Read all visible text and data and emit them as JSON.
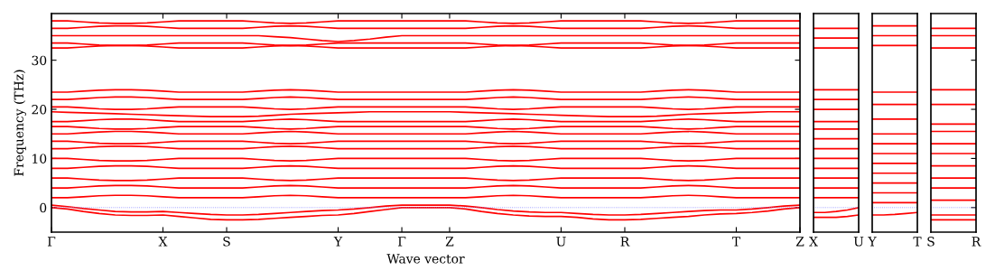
{
  "chart_data": [
    {
      "type": "line",
      "ylabel": "Frequency (THz)",
      "xlabel": "Wave vector",
      "ylim": [
        -5,
        39.5
      ],
      "yticks": [
        0,
        10,
        20,
        30
      ],
      "categories": [
        "Γ",
        null,
        null,
        null,
        null,
        null,
        null,
        "X",
        null,
        null,
        null,
        "S",
        null,
        null,
        null,
        null,
        null,
        null,
        "Y",
        null,
        null,
        null,
        "Γ",
        null,
        null,
        "Z",
        null,
        null,
        null,
        null,
        null,
        null,
        "U",
        null,
        null,
        null,
        "R",
        null,
        null,
        null,
        null,
        null,
        null,
        "T",
        null,
        null,
        null,
        "Z"
      ],
      "ref_lines": [
        {
          "axis": "y",
          "value": 0,
          "color": "#8080ff",
          "line_style": "dotted"
        }
      ],
      "grid": false,
      "legend": false,
      "series": [
        {
          "color": "#ff0000",
          "values": [
            0,
            -0.3,
            -0.8,
            -1.2,
            -1.5,
            -1.6,
            -1.6,
            -1.5,
            -1.8,
            -2.1,
            -2.4,
            -2.5,
            -2.5,
            -2.4,
            -2.2,
            -2,
            -1.8,
            -1.6,
            -1.5,
            -1.2,
            -0.8,
            -0.4,
            0,
            0,
            0,
            0,
            -0.3,
            -0.8,
            -1.2,
            -1.5,
            -1.7,
            -1.8,
            -1.8,
            -2,
            -2.3,
            -2.5,
            -2.5,
            -2.4,
            -2.2,
            -2,
            -1.8,
            -1.5,
            -1.3,
            -1.2,
            -1,
            -0.7,
            -0.3,
            0
          ]
        },
        {
          "color": "#ff0000",
          "values": [
            0.5,
            0.2,
            -0.2,
            -0.5,
            -0.8,
            -0.9,
            -0.9,
            -0.8,
            -1,
            -1.2,
            -1.4,
            -1.5,
            -1.5,
            -1.4,
            -1.2,
            -1,
            -0.8,
            -0.6,
            -0.5,
            -0.3,
            0,
            0.3,
            0.5,
            0.5,
            0.5,
            0.5,
            0.3,
            0,
            -0.4,
            -0.7,
            -0.9,
            -1,
            -1,
            -1.2,
            -1.4,
            -1.5,
            -1.5,
            -1.4,
            -1.2,
            -1,
            -0.8,
            -0.6,
            -0.5,
            -0.5,
            -0.3,
            0,
            0.3,
            0.5
          ]
        },
        {
          "color": "#ff0000",
          "values": [
            2,
            2,
            2.2,
            2.4,
            2.5,
            2.5,
            2.4,
            2.2,
            2,
            2,
            2,
            2,
            2,
            2.2,
            2.4,
            2.5,
            2.4,
            2.2,
            2,
            2,
            2,
            2,
            2,
            2,
            2,
            2,
            2,
            2.2,
            2.4,
            2.5,
            2.4,
            2.2,
            2,
            2,
            2,
            2,
            2,
            2,
            2.2,
            2.4,
            2.5,
            2.4,
            2.2,
            2,
            2,
            2,
            2,
            2
          ]
        },
        {
          "color": "#ff0000",
          "values": [
            4,
            4,
            4.2,
            4.4,
            4.5,
            4.5,
            4.4,
            4.2,
            4,
            4,
            4,
            4,
            4,
            4.2,
            4.4,
            4.5,
            4.4,
            4.2,
            4,
            4,
            4,
            4,
            4,
            4,
            4,
            4,
            4,
            4.2,
            4.4,
            4.5,
            4.4,
            4.2,
            4,
            4,
            4,
            4,
            4,
            4,
            4.2,
            4.4,
            4.5,
            4.4,
            4.2,
            4,
            4,
            4,
            4,
            4
          ]
        },
        {
          "color": "#ff0000",
          "values": [
            6,
            6,
            5.8,
            5.6,
            5.5,
            5.5,
            5.6,
            5.8,
            6,
            6,
            6,
            6,
            6,
            5.8,
            5.6,
            5.5,
            5.6,
            5.8,
            6,
            6,
            6,
            6,
            6,
            6,
            6,
            6,
            6,
            5.8,
            5.6,
            5.5,
            5.6,
            5.8,
            6,
            6,
            6,
            6,
            6,
            6,
            5.8,
            5.6,
            5.5,
            5.6,
            5.8,
            6,
            6,
            6,
            6,
            6
          ]
        },
        {
          "color": "#ff0000",
          "values": [
            8,
            8,
            8.2,
            8.4,
            8.5,
            8.5,
            8.4,
            8.2,
            8,
            8,
            8,
            8,
            8,
            8.2,
            8.4,
            8.5,
            8.4,
            8.2,
            8,
            8,
            8,
            8,
            8,
            8,
            8,
            8,
            8,
            8.2,
            8.4,
            8.5,
            8.4,
            8.2,
            8,
            8,
            8,
            8,
            8,
            8,
            8.2,
            8.4,
            8.5,
            8.4,
            8.2,
            8,
            8,
            8,
            8,
            8
          ]
        },
        {
          "color": "#ff0000",
          "values": [
            10,
            10,
            9.8,
            9.6,
            9.5,
            9.5,
            9.6,
            9.8,
            10,
            10,
            10,
            10,
            10,
            9.8,
            9.6,
            9.5,
            9.6,
            9.8,
            10,
            10,
            10,
            10,
            10,
            10,
            10,
            10,
            10,
            9.8,
            9.6,
            9.5,
            9.6,
            9.8,
            10,
            10,
            10,
            10,
            10,
            10,
            9.8,
            9.6,
            9.5,
            9.6,
            9.8,
            10,
            10,
            10,
            10,
            10
          ]
        },
        {
          "color": "#ff0000",
          "values": [
            12,
            12,
            12.2,
            12.4,
            12.5,
            12.5,
            12.4,
            12.2,
            12,
            12,
            12,
            12,
            12,
            12.2,
            12.4,
            12.5,
            12.4,
            12.2,
            12,
            12,
            12,
            12,
            12,
            12,
            12,
            12,
            12,
            12.2,
            12.4,
            12.5,
            12.4,
            12.2,
            12,
            12,
            12,
            12,
            12,
            12,
            12.2,
            12.4,
            12.5,
            12.4,
            12.2,
            12,
            12,
            12,
            12,
            12
          ]
        },
        {
          "color": "#ff0000",
          "values": [
            13.5,
            13.5,
            13.3,
            13.1,
            13,
            13,
            13.1,
            13.3,
            13.5,
            13.5,
            13.5,
            13.5,
            13.5,
            13.3,
            13.1,
            13,
            13.1,
            13.3,
            13.5,
            13.5,
            13.5,
            13.5,
            13.5,
            13.5,
            13.5,
            13.5,
            13.5,
            13.3,
            13.1,
            13,
            13.1,
            13.3,
            13.5,
            13.5,
            13.5,
            13.5,
            13.5,
            13.5,
            13.3,
            13.1,
            13,
            13.1,
            13.3,
            13.5,
            13.5,
            13.5,
            13.5,
            13.5
          ]
        },
        {
          "color": "#ff0000",
          "values": [
            15,
            15,
            15.2,
            15.4,
            15.5,
            15.5,
            15.4,
            15.2,
            15,
            15,
            15,
            15,
            15,
            15.2,
            15.4,
            15.5,
            15.4,
            15.2,
            15,
            15,
            15,
            15,
            15,
            15,
            15,
            15,
            15,
            15.2,
            15.4,
            15.5,
            15.4,
            15.2,
            15,
            15,
            15,
            15,
            15,
            15,
            15.2,
            15.4,
            15.5,
            15.4,
            15.2,
            15,
            15,
            15,
            15,
            15
          ]
        },
        {
          "color": "#ff0000",
          "values": [
            16.5,
            16.5,
            16.3,
            16.1,
            16,
            16,
            16.1,
            16.3,
            16.5,
            16.5,
            16.5,
            16.5,
            16.5,
            16.3,
            16.1,
            16,
            16.1,
            16.3,
            16.5,
            16.5,
            16.5,
            16.5,
            16.5,
            16.5,
            16.5,
            16.5,
            16.5,
            16.3,
            16.1,
            16,
            16.1,
            16.3,
            16.5,
            16.5,
            16.5,
            16.5,
            16.5,
            16.5,
            16.3,
            16.1,
            16,
            16.1,
            16.3,
            16.5,
            16.5,
            16.5,
            16.5,
            16.5
          ]
        },
        {
          "color": "#ff0000",
          "values": [
            17.5,
            17.5,
            17.7,
            17.9,
            18,
            18,
            17.9,
            17.7,
            17.5,
            17.5,
            17.5,
            17.5,
            17.5,
            17.7,
            17.9,
            18,
            17.9,
            17.7,
            17.5,
            17.5,
            17.5,
            17.5,
            17.5,
            17.5,
            17.5,
            17.5,
            17.5,
            17.7,
            17.9,
            18,
            17.9,
            17.7,
            17.5,
            17.5,
            17.5,
            17.5,
            17.5,
            17.5,
            17.7,
            17.9,
            18,
            17.9,
            17.7,
            17.5,
            17.5,
            17.5,
            17.5,
            17.5
          ]
        },
        {
          "color": "#ff0000",
          "values": [
            19.5,
            19.4,
            19.3,
            19.2,
            19.1,
            19,
            18.9,
            18.8,
            18.7,
            18.6,
            18.5,
            18.5,
            18.5,
            18.6,
            18.8,
            19,
            19.1,
            19.2,
            19.3,
            19.4,
            19.5,
            19.5,
            19.5,
            19.5,
            19.5,
            19.5,
            19.4,
            19.3,
            19.2,
            19.1,
            19,
            18.9,
            18.8,
            18.7,
            18.6,
            18.5,
            18.5,
            18.5,
            18.6,
            18.8,
            19,
            19.1,
            19.2,
            19.3,
            19.4,
            19.5,
            19.5,
            19.5
          ]
        },
        {
          "color": "#ff0000",
          "values": [
            20.5,
            20.5,
            20.3,
            20.1,
            20,
            20,
            20.1,
            20.3,
            20.5,
            20.5,
            20.5,
            20.5,
            20.5,
            20.3,
            20.1,
            20,
            20.1,
            20.3,
            20.5,
            20.5,
            20.5,
            20.5,
            20.5,
            20.5,
            20.5,
            20.5,
            20.5,
            20.3,
            20.1,
            20,
            20.1,
            20.3,
            20.5,
            20.5,
            20.5,
            20.5,
            20.5,
            20.5,
            20.3,
            20.1,
            20,
            20.1,
            20.3,
            20.5,
            20.5,
            20.5,
            20.5,
            20.5
          ]
        },
        {
          "color": "#ff0000",
          "values": [
            22,
            22,
            22.2,
            22.4,
            22.5,
            22.5,
            22.4,
            22.2,
            22,
            22,
            22,
            22,
            22,
            22.2,
            22.4,
            22.5,
            22.4,
            22.2,
            22,
            22,
            22,
            22,
            22,
            22,
            22,
            22,
            22,
            22.2,
            22.4,
            22.5,
            22.4,
            22.2,
            22,
            22,
            22,
            22,
            22,
            22,
            22.2,
            22.4,
            22.5,
            22.4,
            22.2,
            22,
            22,
            22,
            22,
            22
          ]
        },
        {
          "color": "#ff0000",
          "values": [
            23.5,
            23.5,
            23.7,
            23.9,
            24,
            24,
            23.9,
            23.7,
            23.5,
            23.5,
            23.5,
            23.5,
            23.5,
            23.7,
            23.9,
            24,
            23.9,
            23.7,
            23.5,
            23.5,
            23.5,
            23.5,
            23.5,
            23.5,
            23.5,
            23.5,
            23.5,
            23.7,
            23.9,
            24,
            23.9,
            23.7,
            23.5,
            23.5,
            23.5,
            23.5,
            23.5,
            23.5,
            23.7,
            23.9,
            24,
            23.9,
            23.7,
            23.5,
            23.5,
            23.5,
            23.5,
            23.5
          ]
        },
        {
          "color": "#ff0000",
          "values": [
            32.5,
            32.5,
            32.7,
            32.9,
            33,
            33,
            32.9,
            32.7,
            32.5,
            32.5,
            32.5,
            32.5,
            32.5,
            32.7,
            32.9,
            33,
            32.9,
            32.7,
            32.5,
            32.5,
            32.5,
            32.5,
            32.5,
            32.5,
            32.5,
            32.5,
            32.5,
            32.7,
            32.9,
            33,
            32.9,
            32.7,
            32.5,
            32.5,
            32.5,
            32.5,
            32.5,
            32.5,
            32.7,
            32.9,
            33,
            32.9,
            32.7,
            32.5,
            32.5,
            32.5,
            32.5,
            32.5
          ]
        },
        {
          "color": "#ff0000",
          "values": [
            33.5,
            33.5,
            33.3,
            33.1,
            33,
            33,
            33.1,
            33.3,
            33.5,
            33.5,
            33.5,
            33.5,
            33.5,
            33.3,
            33.1,
            33,
            33.1,
            33.3,
            33.5,
            33.5,
            33.5,
            33.5,
            33.5,
            33.5,
            33.5,
            33.5,
            33.5,
            33.3,
            33.1,
            33,
            33.1,
            33.3,
            33.5,
            33.5,
            33.5,
            33.5,
            33.5,
            33.5,
            33.3,
            33.1,
            33,
            33.1,
            33.3,
            33.5,
            33.5,
            33.5,
            33.5,
            33.5
          ]
        },
        {
          "color": "#ff0000",
          "values": [
            35,
            35,
            35,
            35,
            35,
            35,
            35,
            35,
            35,
            35,
            35,
            35,
            35,
            35,
            34.8,
            34.6,
            34.3,
            34,
            33.8,
            34,
            34.3,
            34.7,
            35,
            35,
            35,
            35,
            35,
            35,
            35,
            35,
            35,
            35,
            35,
            35,
            35,
            35,
            35,
            35,
            35,
            35,
            35,
            35,
            35,
            35,
            35,
            35,
            35,
            35
          ]
        },
        {
          "color": "#ff0000",
          "values": [
            36.5,
            36.5,
            36.7,
            36.9,
            37,
            37,
            36.9,
            36.7,
            36.5,
            36.5,
            36.5,
            36.5,
            36.5,
            36.7,
            36.9,
            37,
            36.9,
            36.7,
            36.5,
            36.5,
            36.5,
            36.5,
            36.5,
            36.5,
            36.5,
            36.5,
            36.5,
            36.7,
            36.9,
            37,
            36.9,
            36.7,
            36.5,
            36.5,
            36.5,
            36.5,
            36.5,
            36.5,
            36.7,
            36.9,
            37,
            36.9,
            36.7,
            36.5,
            36.5,
            36.5,
            36.5,
            36.5
          ]
        },
        {
          "color": "#ff0000",
          "values": [
            38,
            38,
            37.8,
            37.6,
            37.5,
            37.5,
            37.6,
            37.8,
            38,
            38,
            38,
            38,
            38,
            37.8,
            37.6,
            37.5,
            37.6,
            37.8,
            38,
            38,
            38,
            38,
            38,
            38,
            38,
            38,
            38,
            37.8,
            37.6,
            37.5,
            37.6,
            37.8,
            38,
            38,
            38,
            38,
            38,
            38,
            37.8,
            37.6,
            37.5,
            37.6,
            37.8,
            38,
            38,
            38,
            38,
            38
          ]
        }
      ]
    },
    {
      "type": "line",
      "ylim": [
        -5,
        39.5
      ],
      "yticks": [
        0,
        10,
        20,
        30
      ],
      "tick_labels": "x",
      "categories": [
        "X",
        null,
        null,
        null,
        "U"
      ],
      "ref_lines": [
        {
          "axis": "y",
          "value": 0,
          "color": "#8080ff",
          "line_style": "dotted"
        }
      ],
      "grid": false,
      "legend": false,
      "series": [
        {
          "color": "#ff0000",
          "values": [
            -2,
            -2,
            -2,
            -1.8,
            -1.5
          ]
        },
        {
          "color": "#ff0000",
          "values": [
            -1,
            -1,
            -0.8,
            -0.5,
            0
          ]
        },
        {
          "color": "#ff0000",
          "values": [
            2,
            2,
            2,
            2,
            2
          ]
        },
        {
          "color": "#ff0000",
          "values": [
            4,
            4,
            4,
            4,
            4
          ]
        },
        {
          "color": "#ff0000",
          "values": [
            6,
            6,
            6,
            6,
            6
          ]
        },
        {
          "color": "#ff0000",
          "values": [
            8,
            8,
            8,
            8,
            8
          ]
        },
        {
          "color": "#ff0000",
          "values": [
            10,
            10,
            10,
            10,
            10
          ]
        },
        {
          "color": "#ff0000",
          "values": [
            12,
            12,
            12,
            12,
            12
          ]
        },
        {
          "color": "#ff0000",
          "values": [
            14,
            14,
            14,
            14,
            14
          ]
        },
        {
          "color": "#ff0000",
          "values": [
            16,
            16,
            16,
            16,
            16
          ]
        },
        {
          "color": "#ff0000",
          "values": [
            17.5,
            17.5,
            17.5,
            17.5,
            17.5
          ]
        },
        {
          "color": "#ff0000",
          "values": [
            20,
            20,
            20,
            20,
            20
          ]
        },
        {
          "color": "#ff0000",
          "values": [
            22,
            22,
            22,
            22,
            22
          ]
        },
        {
          "color": "#ff0000",
          "values": [
            24,
            24,
            24,
            24,
            24
          ]
        },
        {
          "color": "#ff0000",
          "values": [
            32.5,
            32.5,
            32.5,
            32.5,
            32.5
          ]
        },
        {
          "color": "#ff0000",
          "values": [
            34.5,
            34.5,
            34.5,
            34.5,
            34.5
          ]
        },
        {
          "color": "#ff0000",
          "values": [
            36.5,
            36.5,
            36.5,
            36.5,
            36.5
          ]
        }
      ]
    },
    {
      "type": "line",
      "ylim": [
        -5,
        39.5
      ],
      "yticks": [
        0,
        10,
        20,
        30
      ],
      "tick_labels": "x",
      "categories": [
        "Y",
        null,
        null,
        null,
        "T"
      ],
      "ref_lines": [
        {
          "axis": "y",
          "value": 0,
          "color": "#8080ff",
          "line_style": "dotted"
        }
      ],
      "grid": false,
      "legend": false,
      "series": [
        {
          "color": "#ff0000",
          "values": [
            -1.5,
            -1.5,
            -1.4,
            -1.2,
            -1
          ]
        },
        {
          "color": "#ff0000",
          "values": [
            1,
            1,
            1,
            1,
            1
          ]
        },
        {
          "color": "#ff0000",
          "values": [
            3,
            3,
            3,
            3,
            3
          ]
        },
        {
          "color": "#ff0000",
          "values": [
            5,
            5,
            5,
            5,
            5
          ]
        },
        {
          "color": "#ff0000",
          "values": [
            7,
            7,
            7,
            7,
            7
          ]
        },
        {
          "color": "#ff0000",
          "values": [
            9,
            9,
            9,
            9,
            9
          ]
        },
        {
          "color": "#ff0000",
          "values": [
            11,
            11,
            11,
            11,
            11
          ]
        },
        {
          "color": "#ff0000",
          "values": [
            13,
            13,
            13,
            13,
            13
          ]
        },
        {
          "color": "#ff0000",
          "values": [
            15,
            15,
            15,
            15,
            15
          ]
        },
        {
          "color": "#ff0000",
          "values": [
            18,
            18,
            18,
            18,
            18
          ]
        },
        {
          "color": "#ff0000",
          "values": [
            21,
            21,
            21,
            21,
            21
          ]
        },
        {
          "color": "#ff0000",
          "values": [
            23.5,
            23.5,
            23.5,
            23.5,
            23.5
          ]
        },
        {
          "color": "#ff0000",
          "values": [
            33,
            33,
            33,
            33,
            33
          ]
        },
        {
          "color": "#ff0000",
          "values": [
            35,
            35,
            35,
            35,
            35
          ]
        },
        {
          "color": "#ff0000",
          "values": [
            37,
            37,
            37,
            37,
            37
          ]
        }
      ]
    },
    {
      "type": "line",
      "ylim": [
        -5,
        39.5
      ],
      "yticks": [
        0,
        10,
        20,
        30
      ],
      "tick_labels": "x",
      "categories": [
        "S",
        null,
        null,
        null,
        "R"
      ],
      "ref_lines": [
        {
          "axis": "y",
          "value": 0,
          "color": "#8080ff",
          "line_style": "dotted"
        }
      ],
      "grid": false,
      "legend": false,
      "series": [
        {
          "color": "#ff0000",
          "values": [
            -2.5,
            -2.5,
            -2.5,
            -2.5,
            -2.5
          ]
        },
        {
          "color": "#ff0000",
          "values": [
            -1.5,
            -1.5,
            -1.5,
            -1.5,
            -1.5
          ]
        },
        {
          "color": "#ff0000",
          "values": [
            1.5,
            1.5,
            1.5,
            1.5,
            1.5
          ]
        },
        {
          "color": "#ff0000",
          "values": [
            4,
            4,
            4,
            4,
            4
          ]
        },
        {
          "color": "#ff0000",
          "values": [
            6,
            6,
            6,
            6,
            6
          ]
        },
        {
          "color": "#ff0000",
          "values": [
            8.5,
            8.5,
            8.5,
            8.5,
            8.5
          ]
        },
        {
          "color": "#ff0000",
          "values": [
            11,
            11,
            11,
            11,
            11
          ]
        },
        {
          "color": "#ff0000",
          "values": [
            13,
            13,
            13,
            13,
            13
          ]
        },
        {
          "color": "#ff0000",
          "values": [
            15.5,
            15.5,
            15.5,
            15.5,
            15.5
          ]
        },
        {
          "color": "#ff0000",
          "values": [
            17,
            17,
            17,
            17,
            17
          ]
        },
        {
          "color": "#ff0000",
          "values": [
            21,
            21,
            21,
            21,
            21
          ]
        },
        {
          "color": "#ff0000",
          "values": [
            24,
            24,
            24,
            24,
            24
          ]
        },
        {
          "color": "#ff0000",
          "values": [
            32.5,
            32.5,
            32.5,
            32.5,
            32.5
          ]
        },
        {
          "color": "#ff0000",
          "values": [
            35,
            35,
            35,
            35,
            35
          ]
        },
        {
          "color": "#ff0000",
          "values": [
            36.5,
            36.5,
            36.5,
            36.5,
            36.5
          ]
        }
      ]
    }
  ]
}
